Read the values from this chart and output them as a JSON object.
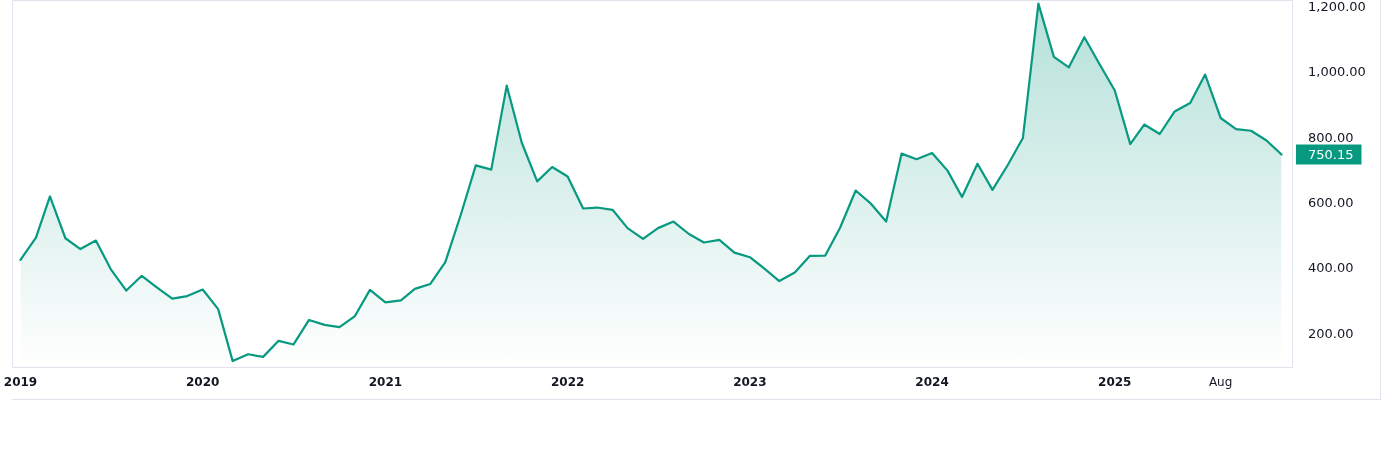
{
  "chart_data": {
    "type": "area",
    "x": [
      "2019-01",
      "2019-02",
      "2019-03",
      "2019-04",
      "2019-05",
      "2019-06",
      "2019-07",
      "2019-08",
      "2019-09",
      "2019-10",
      "2019-11",
      "2019-12",
      "2020-01",
      "2020-02",
      "2020-03",
      "2020-04",
      "2020-05",
      "2020-06",
      "2020-07",
      "2020-08",
      "2020-09",
      "2020-10",
      "2020-11",
      "2020-12",
      "2021-01",
      "2021-02",
      "2021-03",
      "2021-04",
      "2021-05",
      "2021-06",
      "2021-07",
      "2021-08",
      "2021-09",
      "2021-10",
      "2021-11",
      "2021-12",
      "2022-01",
      "2022-02",
      "2022-03",
      "2022-04",
      "2022-05",
      "2022-06",
      "2022-07",
      "2022-08",
      "2022-09",
      "2022-10",
      "2022-11",
      "2022-12",
      "2023-01",
      "2023-02",
      "2023-03",
      "2023-04",
      "2023-05",
      "2023-06",
      "2023-07",
      "2023-08",
      "2023-09",
      "2023-10",
      "2023-11",
      "2023-12",
      "2024-01",
      "2024-02",
      "2024-03",
      "2024-04",
      "2024-05",
      "2024-06",
      "2024-07",
      "2024-08",
      "2024-09",
      "2024-10",
      "2024-11",
      "2024-12",
      "2025-01",
      "2025-02",
      "2025-03",
      "2025-04",
      "2025-05",
      "2025-06",
      "2025-07",
      "2025-08",
      "2025-09",
      "2025-10",
      "2025-11",
      "2025-12"
    ],
    "series": [
      {
        "color": "#089981",
        "values": [
          428,
          496,
          622,
          494,
          461,
          487,
          399,
          334,
          379,
          344,
          309,
          317,
          337,
          277,
          118,
          139,
          131,
          180,
          169,
          244,
          229,
          222,
          256,
          336,
          298,
          304,
          339,
          354,
          421,
          566,
          717,
          704,
          961,
          787,
          668,
          712,
          683,
          585,
          588,
          581,
          525,
          492,
          525,
          545,
          507,
          481,
          489,
          450,
          436,
          399,
          363,
          389,
          440,
          441,
          527,
          640,
          599,
          545,
          753,
          736,
          755,
          701,
          620,
          722,
          642,
          719,
          801,
          1212,
          1049,
          1017,
          1109,
          1028,
          946,
          782,
          842,
          813,
          882,
          908,
          995,
          862,
          828,
          823,
          793,
          750.15
        ]
      }
    ],
    "xlim": [
      "2018-12-17",
      "2025-12-22"
    ],
    "xticks": [
      {
        "value": "2019-01",
        "label": "2019"
      },
      {
        "value": "2020-01",
        "label": "2020"
      },
      {
        "value": "2021-01",
        "label": "2021"
      },
      {
        "value": "2022-01",
        "label": "2022"
      },
      {
        "value": "2023-01",
        "label": "2023"
      },
      {
        "value": "2024-01",
        "label": "2024"
      },
      {
        "value": "2025-01",
        "label": "2025"
      },
      {
        "value": "2025-08",
        "label": "Aug"
      }
    ],
    "ylim": [
      100,
      1220
    ],
    "yticks": [
      {
        "value": 200,
        "label": "200.00"
      },
      {
        "value": 400,
        "label": "400.00"
      },
      {
        "value": 600,
        "label": "600.00"
      },
      {
        "value": 800,
        "label": "800.00"
      },
      {
        "value": 1000,
        "label": "1,000.00"
      },
      {
        "value": 1200,
        "label": "1,200.00"
      }
    ],
    "annotations": [
      {
        "text": "750.15",
        "x": "2025-12",
        "y": 750.15
      }
    ]
  }
}
